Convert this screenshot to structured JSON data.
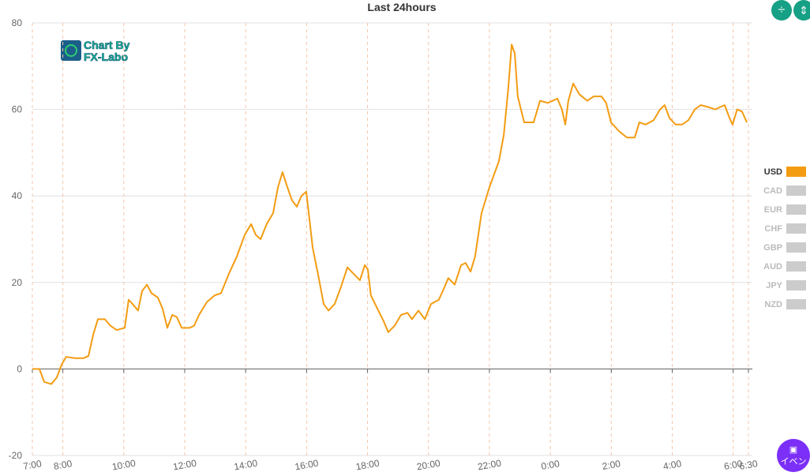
{
  "chart_data": {
    "type": "line",
    "title": "Last 24hours",
    "x": [
      0,
      0.23,
      0.39,
      0.62,
      0.8,
      0.96,
      1.11,
      1.4,
      1.68,
      1.84,
      2.0,
      2.15,
      2.38,
      2.56,
      2.77,
      3.03,
      3.16,
      3.29,
      3.47,
      3.6,
      3.76,
      3.91,
      4.12,
      4.27,
      4.43,
      4.59,
      4.74,
      4.9,
      5.16,
      5.31,
      5.47,
      5.73,
      5.98,
      6.19,
      6.45,
      6.71,
      6.97,
      7.18,
      7.33,
      7.49,
      7.69,
      7.9,
      8.06,
      8.21,
      8.37,
      8.52,
      8.68,
      8.83,
      8.99,
      9.2,
      9.4,
      9.56,
      9.72,
      9.92,
      10.13,
      10.34,
      10.54,
      10.75,
      10.91,
      11.01,
      11.11,
      11.32,
      11.53,
      11.68,
      11.89,
      12.1,
      12.31,
      12.46,
      12.67,
      12.88,
      13.08,
      13.34,
      13.5,
      13.65,
      13.86,
      14.07,
      14.22,
      14.38,
      14.53,
      14.74,
      15.0,
      15.31,
      15.47,
      15.62,
      15.73,
      15.83,
      15.93,
      16.14,
      16.45,
      16.66,
      16.92,
      17.23,
      17.38,
      17.49,
      17.59,
      17.75,
      17.95,
      18.21,
      18.42,
      18.68,
      18.83,
      18.99,
      19.25,
      19.51,
      19.77,
      19.92,
      20.13,
      20.39,
      20.6,
      20.75,
      20.91,
      21.11,
      21.32,
      21.53,
      21.74,
      21.94,
      22.2,
      22.41,
      22.56,
      22.72,
      22.88,
      22.98,
      23.13,
      23.29,
      23.45
    ],
    "series": [
      {
        "name": "USD",
        "color": "#f39c12",
        "values": [
          0,
          0,
          -3,
          -3.5,
          -2,
          1,
          2.8,
          2.5,
          2.5,
          3,
          8,
          11.5,
          11.5,
          10,
          9,
          9.5,
          16,
          15,
          13.5,
          18,
          19.5,
          17.5,
          16.5,
          14,
          9.5,
          12.5,
          12,
          9.5,
          9.5,
          10,
          12.5,
          15.5,
          17,
          17.5,
          22,
          26,
          31,
          33.5,
          31,
          30,
          33.5,
          36,
          42,
          45.5,
          42,
          39,
          37.5,
          40,
          41,
          28,
          21,
          15,
          13.5,
          15,
          19,
          23.5,
          22,
          20.5,
          24,
          23,
          17,
          14,
          11,
          8.5,
          10,
          12.5,
          13,
          11.5,
          13.5,
          11.5,
          15,
          16,
          18.5,
          21,
          19.5,
          24,
          24.5,
          22.5,
          26,
          36,
          42,
          48,
          54,
          65,
          75,
          73,
          63,
          57,
          57,
          62,
          61.5,
          62.5,
          60,
          56.5,
          62,
          66,
          63.5,
          62,
          63,
          63,
          61.5,
          57,
          55,
          53.5,
          53.5,
          57,
          56.5,
          57.5,
          60,
          61,
          58,
          56.5,
          56.5,
          57.5,
          60,
          61,
          60.5,
          60,
          60.5,
          61,
          58,
          56.5,
          60,
          59.5,
          57
        ]
      }
    ],
    "legend": [
      {
        "name": "USD",
        "color": "#f39c12"
      },
      {
        "name": "CAD",
        "color": "#cccccc"
      },
      {
        "name": "EUR",
        "color": "#cccccc"
      },
      {
        "name": "CHF",
        "color": "#cccccc"
      },
      {
        "name": "GBP",
        "color": "#cccccc"
      },
      {
        "name": "AUD",
        "color": "#cccccc"
      },
      {
        "name": "JPY",
        "color": "#cccccc"
      },
      {
        "name": "NZD",
        "color": "#cccccc"
      }
    ],
    "xlim": [
      0,
      23.5
    ],
    "xticks": [
      {
        "value": 0,
        "label": "7:00"
      },
      {
        "value": 1,
        "label": "8:00"
      },
      {
        "value": 3,
        "label": "10:00"
      },
      {
        "value": 5,
        "label": "12:00"
      },
      {
        "value": 7,
        "label": "14:00"
      },
      {
        "value": 9,
        "label": "16:00"
      },
      {
        "value": 11,
        "label": "18:00"
      },
      {
        "value": 13,
        "label": "20:00"
      },
      {
        "value": 15,
        "label": "22:00"
      },
      {
        "value": 17,
        "label": "0:00"
      },
      {
        "value": 19,
        "label": "2:00"
      },
      {
        "value": 21,
        "label": "4:00"
      },
      {
        "value": 23,
        "label": "6:00"
      },
      {
        "value": 23.5,
        "label": "6:30"
      }
    ],
    "ylim": [
      -20,
      80
    ],
    "yticks": [
      -20,
      0,
      20,
      40,
      60,
      80
    ],
    "grid": true
  },
  "logo": {
    "line1": "Chart By",
    "line2": "FX-Labo"
  },
  "event_button": "イベン"
}
